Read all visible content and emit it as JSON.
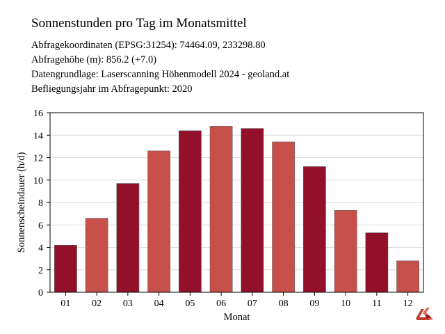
{
  "header": {
    "title": "Sonnenstunden pro Tag im Monatsmittel",
    "info": [
      "Abfragekoordinaten (EPSG:31254): 74464.09, 233298.80",
      "Abfragehöhe (m): 856.2 (+7.0)",
      "Datengrundlage: Laserscanning Höhenmodell 2024 - geoland.at",
      "Befliegungsjahr im Abfragepunkt: 2020"
    ]
  },
  "chart_data": {
    "type": "bar",
    "categories": [
      "01",
      "02",
      "03",
      "04",
      "05",
      "06",
      "07",
      "08",
      "09",
      "10",
      "11",
      "12"
    ],
    "values": [
      4.2,
      6.6,
      9.7,
      12.6,
      14.4,
      14.8,
      14.6,
      13.4,
      11.2,
      7.3,
      5.3,
      2.8
    ],
    "xlabel": "Monat",
    "ylabel": "Sonnenscheindauer (h/d)",
    "ylim": [
      0,
      16
    ],
    "yticks": [
      0,
      2,
      4,
      6,
      8,
      10,
      12,
      14,
      16
    ],
    "grid": true,
    "colors": [
      "#921029",
      "#c8504a"
    ]
  },
  "logo_icon": "geoland-logo-icon"
}
